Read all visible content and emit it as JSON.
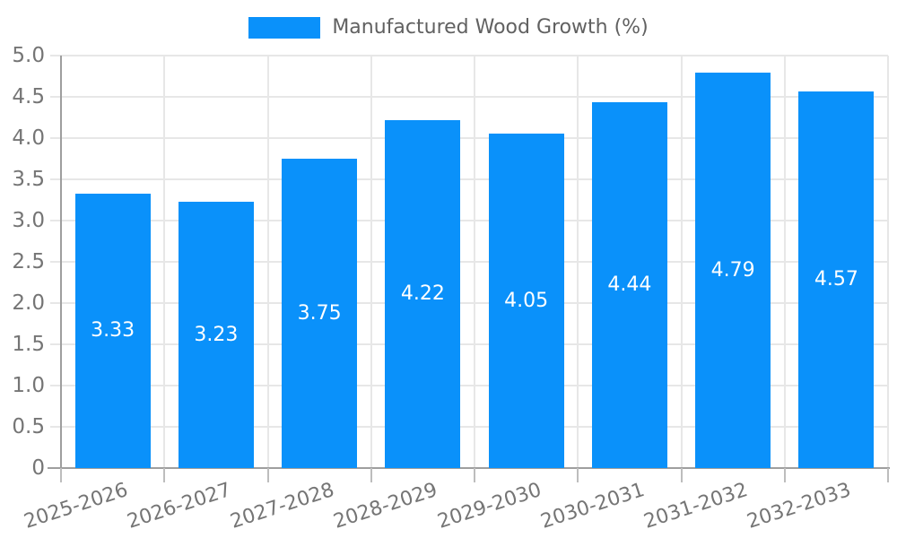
{
  "chart_data": {
    "type": "bar",
    "title": "Manufactured Wood Growth (%)",
    "categories": [
      "2025-2026",
      "2026-2027",
      "2027-2028",
      "2028-2029",
      "2029-2030",
      "2030-2031",
      "2031-2032",
      "2032-2033"
    ],
    "values": [
      3.33,
      3.23,
      3.75,
      4.22,
      4.05,
      4.44,
      4.79,
      4.57
    ],
    "value_labels": [
      "3.33",
      "3.23",
      "3.75",
      "4.22",
      "4.05",
      "4.44",
      "4.79",
      "4.57"
    ],
    "xlabel": "",
    "ylabel": "",
    "ylim": [
      0,
      5.0
    ],
    "ytick_step": 0.5,
    "yticks": [
      "0",
      "0.5",
      "1.0",
      "1.5",
      "2.0",
      "2.5",
      "3.0",
      "3.5",
      "4.0",
      "4.5",
      "5.0"
    ],
    "grid": true,
    "legend_position": "top-center",
    "value_label_position": "inside-center",
    "bar_color": "#0a91fa"
  },
  "colors": {
    "bar": "#0a91fa",
    "grid": "#e7e7e7",
    "axis_line": "#9e9e9e",
    "tick": "#bdbdbd",
    "axis_label": "#757575",
    "legend_label": "#616161",
    "value_label": "#ffffff"
  }
}
